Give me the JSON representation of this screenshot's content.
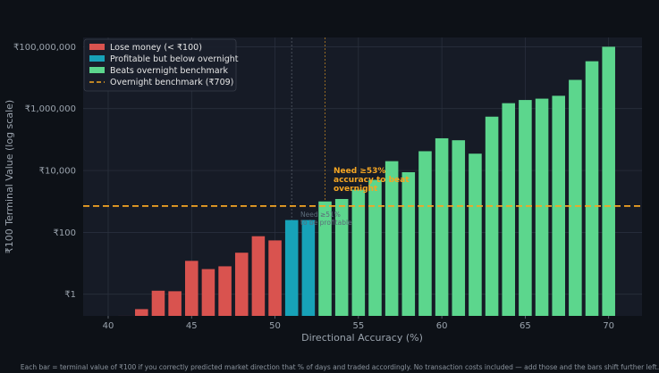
{
  "chart_data": {
    "type": "bar",
    "xlabel": "Directional Accuracy (%)",
    "ylabel": "₹100 Terminal Value (log scale)",
    "x": [
      40,
      41,
      42,
      43,
      44,
      45,
      46,
      47,
      48,
      49,
      50,
      51,
      52,
      53,
      54,
      55,
      56,
      57,
      58,
      59,
      60,
      61,
      62,
      63,
      64,
      65,
      66,
      67,
      68,
      69,
      70
    ],
    "values": [
      0.1,
      0.2,
      0.33,
      1.3,
      1.25,
      12,
      6.5,
      8,
      22,
      75,
      55,
      250,
      250,
      1000,
      1200,
      2400,
      5000,
      20000,
      8800,
      42000,
      110000,
      95000,
      35000,
      550000,
      1500000,
      1900000,
      2100000,
      2600000,
      8500000,
      34000000,
      100000000
    ],
    "categories_by_bar": [
      "loss",
      "loss",
      "loss",
      "loss",
      "loss",
      "loss",
      "loss",
      "loss",
      "loss",
      "loss",
      "loss",
      "below",
      "below",
      "beats",
      "beats",
      "beats",
      "beats",
      "beats",
      "beats",
      "beats",
      "beats",
      "beats",
      "beats",
      "beats",
      "beats",
      "beats",
      "beats",
      "beats",
      "beats",
      "beats",
      "beats"
    ],
    "xlim": [
      38.5,
      72
    ],
    "xticks": [
      40,
      45,
      50,
      55,
      60,
      65,
      70
    ],
    "ylim_log10": [
      -0.7,
      8.3
    ],
    "yticks": [
      {
        "value": 1,
        "label": "₹1"
      },
      {
        "value": 100,
        "label": "₹100"
      },
      {
        "value": 10000,
        "label": "₹10,000"
      },
      {
        "value": 1000000,
        "label": "₹1,000,000"
      },
      {
        "value": 100000000,
        "label": "₹100,000,000"
      }
    ],
    "benchmark": {
      "value": 709,
      "label": "Overnight benchmark (₹709)",
      "color": "#f5a623"
    },
    "vlines": [
      51,
      53
    ],
    "colors": {
      "loss": "#d9534f",
      "below": "#17a2b8",
      "beats": "#5cd68d"
    },
    "legend": [
      {
        "key": "loss",
        "label": "Lose money (< ₹100)"
      },
      {
        "key": "below",
        "label": "Profitable but below overnight"
      },
      {
        "key": "beats",
        "label": "Beats overnight benchmark"
      }
    ],
    "annotations": {
      "need": [
        "Need ≥53%",
        "accuracy to beat",
        "overnight"
      ],
      "faint": [
        "Need ≥51%",
        "to be profitable"
      ]
    }
  },
  "footer": "Each bar = terminal value of ₹100 if you correctly predicted market direction that % of days and traded accordingly. No transaction costs included — add those and the bars shift further left."
}
